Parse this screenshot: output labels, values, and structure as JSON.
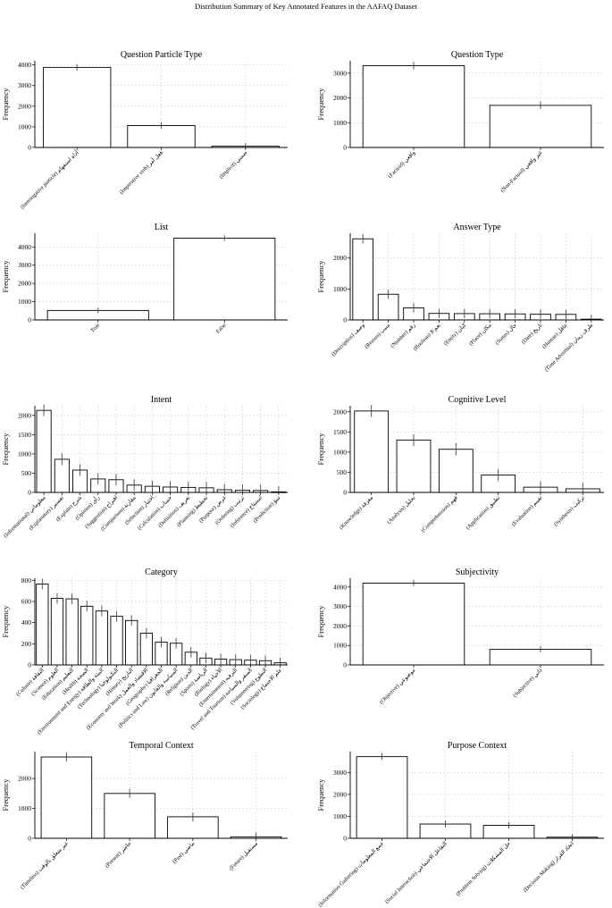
{
  "suptitle": "Distribution Summary of Key Annotated Features in the AAFAQ Dataset",
  "ylabel": "Frequency",
  "chart_data": [
    {
      "type": "bar",
      "title": "Question Particle Type",
      "ylabel": "Frequency",
      "categories": [
        "(Interrogative particle) أداة استفهام",
        "(Imperative verb) فعل أمر",
        "(Implicit) ضمني"
      ],
      "values": [
        3880,
        1060,
        60
      ],
      "errors": [
        150,
        150,
        150
      ],
      "ylim": [
        0,
        4200
      ],
      "yticks": [
        0,
        1000,
        2000,
        3000,
        4000
      ]
    },
    {
      "type": "bar",
      "title": "Question Type",
      "ylabel": "Frequency",
      "categories": [
        "(Factoid) واقعي",
        "(Non-Factoid) غير واقعي"
      ],
      "values": [
        3300,
        1700
      ],
      "errors": [
        150,
        150
      ],
      "ylim": [
        0,
        3500
      ],
      "yticks": [
        0,
        1000,
        2000,
        3000
      ]
    },
    {
      "type": "bar",
      "title": "List",
      "ylabel": "Frequency",
      "categories": [
        "True",
        "False"
      ],
      "values": [
        520,
        4480
      ],
      "errors": [
        150,
        150
      ],
      "ylim": [
        0,
        4750
      ],
      "yticks": [
        0,
        1000,
        2000,
        3000,
        4000
      ]
    },
    {
      "type": "bar",
      "title": "Answer Type",
      "ylabel": "Frequency",
      "categories": [
        "(Description) وصف",
        "(Reason) سبب",
        "(Number) رقم",
        "(Boolean) نعم/لا",
        "(Entity) كيان",
        "(Place) مكان",
        "(Status) حال",
        "(Date) تاريخ",
        "(Human) عاقل",
        "(Time Adverbial) ظرف زمان"
      ],
      "values": [
        2620,
        830,
        390,
        210,
        205,
        200,
        195,
        185,
        180,
        25
      ],
      "errors": [
        150,
        150,
        150,
        150,
        150,
        150,
        150,
        150,
        150,
        150
      ],
      "ylim": [
        0,
        2800
      ],
      "yticks": [
        0,
        1000,
        2000
      ]
    },
    {
      "type": "bar",
      "title": "Intent",
      "ylabel": "Frequency",
      "categories": [
        "(Informational) معلوماتي",
        "(Explanatory) تفسير",
        "(Explain) شرح",
        "(Opinion) رأي",
        "(Suggestion) اقتراح",
        "(Comparison) مقارنة",
        "(Selection) اختيار",
        "(Calculation) حساب",
        "(Definition) تعريف",
        "(Planning) تخطيط",
        "(Purpose) غرض",
        "(Ordering) ترتيب",
        "(Inference) استنتاج",
        "(Prediction) تنبؤ"
      ],
      "values": [
        2130,
        860,
        580,
        350,
        330,
        190,
        160,
        140,
        130,
        120,
        70,
        55,
        50,
        15
      ],
      "errors": [
        150,
        150,
        150,
        150,
        150,
        150,
        150,
        150,
        150,
        150,
        150,
        150,
        150,
        150
      ],
      "ylim": [
        0,
        2250
      ],
      "yticks": [
        0,
        500,
        1000,
        1500,
        2000
      ]
    },
    {
      "type": "bar",
      "title": "Cognitive Level",
      "ylabel": "Frequency",
      "categories": [
        "(Knowledge) معرفة",
        "(Analysis) تحليل",
        "(Comprehension) فهم",
        "(Application) تطبيق",
        "(Evaluation) تقييم",
        "(Synthesis) تركيب"
      ],
      "values": [
        2020,
        1300,
        1070,
        430,
        130,
        90
      ],
      "errors": [
        150,
        150,
        150,
        150,
        150,
        150
      ],
      "ylim": [
        0,
        2150
      ],
      "yticks": [
        0,
        500,
        1000,
        1500,
        2000
      ]
    },
    {
      "type": "bar",
      "title": "Category",
      "ylabel": "Frequency",
      "categories": [
        "(Culture) الثقافة",
        "(Science) العلوم",
        "(Education) التعليم",
        "(Health) الصحة",
        "(Environment and Energy) البيئة والطاقة",
        "(Technology) التكنولوجيا",
        "(History) التاريخ",
        "(Economy and Work) الاقتصاد والعمل",
        "(Geography) الجغرافيا",
        "(Politics and Law) السياسة والقانون",
        "(Religion) الدين",
        "(Sports) الرياضة",
        "(Biology) الأحياء",
        "(Entertainment) الترفيه",
        "(Travel and Tourism) السفر والسياحة",
        "(Volunteering) التطوع",
        "(Sociology) علم الاجتماع"
      ],
      "values": [
        765,
        630,
        625,
        555,
        510,
        460,
        420,
        300,
        215,
        205,
        120,
        65,
        55,
        50,
        45,
        40,
        20
      ],
      "errors": [
        50,
        50,
        50,
        50,
        50,
        50,
        50,
        50,
        50,
        50,
        50,
        50,
        50,
        50,
        50,
        50,
        50
      ],
      "ylim": [
        0,
        820
      ],
      "yticks": [
        0,
        200,
        400,
        600,
        800
      ]
    },
    {
      "type": "bar",
      "title": "Subjectivity",
      "ylabel": "Frequency",
      "categories": [
        "(Objective) موضوعي",
        "(Subjective) ذاتي"
      ],
      "values": [
        4200,
        800
      ],
      "errors": [
        150,
        150
      ],
      "ylim": [
        0,
        4450
      ],
      "yticks": [
        0,
        1000,
        2000,
        3000,
        4000
      ]
    },
    {
      "type": "bar",
      "title": "Temporal Context",
      "ylabel": "Frequency",
      "categories": [
        "(Timeless) غير متعلق بالوقت",
        "(Present) حاضر",
        "(Past) ماضي",
        "(Future) مستقبل"
      ],
      "values": [
        2720,
        1500,
        720,
        50
      ],
      "errors": [
        150,
        150,
        150,
        150
      ],
      "ylim": [
        0,
        2900
      ],
      "yticks": [
        0,
        1000,
        2000
      ]
    },
    {
      "type": "bar",
      "title": "Purpose Context",
      "ylabel": "Frequency",
      "categories": [
        "(Information Gathering) جمع المعلومات",
        "(Social Interaction) التفاعل الاجتماعي",
        "(Problem Solving) حل المشكلات",
        "(Decision Making) اتخاذ القرار"
      ],
      "values": [
        3720,
        650,
        590,
        50
      ],
      "errors": [
        150,
        150,
        150,
        150
      ],
      "ylim": [
        0,
        3950
      ],
      "yticks": [
        0,
        1000,
        2000,
        3000
      ]
    }
  ]
}
